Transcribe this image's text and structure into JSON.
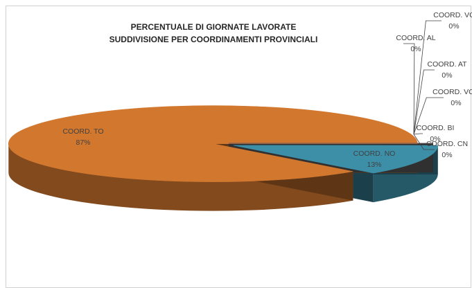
{
  "chart_data": {
    "type": "pie3d",
    "title": "PERCENTUALE DI GIORNATE LAVORATE",
    "subtitle": "SUDDIVISIONE PER COORDINAMENTI PROVINCIALI",
    "categories": [
      "COORD. NO",
      "COORD. TO",
      "COORD. VC",
      "COORD. AL",
      "COORD. AT",
      "COORD. VCO",
      "COORD. BI",
      "COORD. CN"
    ],
    "values": [
      13,
      87,
      0,
      0,
      0,
      0,
      0,
      0
    ],
    "value_labels": [
      "13%",
      "87%",
      "0%",
      "0%",
      "0%",
      "0%",
      "0%",
      "0%"
    ],
    "colors": [
      "#3d8fa8",
      "#d2772e",
      "#7a3b2e",
      "#4b2c6e",
      "#5a7a30",
      "#2c5d8a",
      "#8a2e3b",
      "#6b6b6b"
    ]
  }
}
